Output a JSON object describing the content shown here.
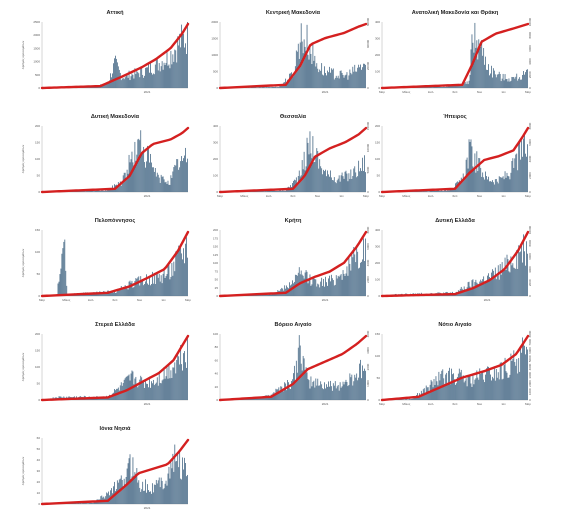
{
  "colors": {
    "bar": "#4d6e8a",
    "line": "#d42020",
    "axis": "#999999",
    "text": "#222222"
  },
  "chart_data": [
    {
      "type": "bar",
      "title": "Αττική",
      "ylabel": "Αριθμός κρουσμάτων",
      "ylim": [
        0,
        2500
      ],
      "yticks": [
        "2500",
        "2000",
        "1500",
        "1000",
        "500",
        "0"
      ],
      "rticks": [],
      "xticks": [
        "2021"
      ],
      "cumulative_label": "",
      "shape": [
        [
          0,
          0
        ],
        [
          0.35,
          0.02
        ],
        [
          0.45,
          0.08
        ],
        [
          0.5,
          0.45
        ],
        [
          0.55,
          0.2
        ],
        [
          0.62,
          0.25
        ],
        [
          0.7,
          0.3
        ],
        [
          0.8,
          0.45
        ],
        [
          0.88,
          0.6
        ],
        [
          0.95,
          0.85
        ],
        [
          1,
          0.95
        ]
      ],
      "cumulative": [
        [
          0,
          0
        ],
        [
          0.4,
          0.03
        ],
        [
          0.55,
          0.18
        ],
        [
          0.68,
          0.32
        ],
        [
          0.78,
          0.45
        ],
        [
          0.88,
          0.62
        ],
        [
          0.96,
          0.85
        ],
        [
          1,
          1
        ]
      ]
    },
    {
      "type": "bar",
      "title": "Κεντρική Μακεδονία",
      "ylabel": "",
      "ylim": [
        0,
        2000
      ],
      "yticks": [
        "2000",
        "1500",
        "1000",
        "500",
        "0"
      ],
      "rticks": [
        "60000",
        "40000",
        "20000",
        "0"
      ],
      "xticks": [
        "2021"
      ],
      "cumulative_label": "",
      "shape": [
        [
          0,
          0
        ],
        [
          0.4,
          0.02
        ],
        [
          0.5,
          0.25
        ],
        [
          0.55,
          0.95
        ],
        [
          0.6,
          0.85
        ],
        [
          0.66,
          0.45
        ],
        [
          0.72,
          0.3
        ],
        [
          0.8,
          0.25
        ],
        [
          0.86,
          0.22
        ],
        [
          0.92,
          0.3
        ],
        [
          1,
          0.45
        ]
      ],
      "cumulative": [
        [
          0,
          0
        ],
        [
          0.45,
          0.05
        ],
        [
          0.55,
          0.35
        ],
        [
          0.62,
          0.68
        ],
        [
          0.72,
          0.78
        ],
        [
          0.85,
          0.86
        ],
        [
          0.95,
          0.96
        ],
        [
          1,
          1
        ]
      ]
    },
    {
      "type": "bar",
      "title": "Ανατολική Μακεδονία και Θράκη",
      "ylabel": "",
      "ylim": [
        0,
        400
      ],
      "yticks": [
        "400",
        "300",
        "200",
        "100",
        "0"
      ],
      "rticks": [
        "10000",
        "8000",
        "6000",
        "4000",
        "2000",
        "0"
      ],
      "xticks": [
        "Μαρ",
        "Μάιος",
        "Ιούλ",
        "Σεπ",
        "Νοε",
        "Ιαν",
        "Μαρ"
      ],
      "cumulative_label": "",
      "shape": [
        [
          0,
          0
        ],
        [
          0.45,
          0.03
        ],
        [
          0.6,
          0.1
        ],
        [
          0.62,
          0.98
        ],
        [
          0.68,
          0.75
        ],
        [
          0.74,
          0.35
        ],
        [
          0.82,
          0.2
        ],
        [
          0.9,
          0.18
        ],
        [
          1,
          0.25
        ]
      ],
      "cumulative": [
        [
          0,
          0
        ],
        [
          0.55,
          0.05
        ],
        [
          0.62,
          0.38
        ],
        [
          0.68,
          0.72
        ],
        [
          0.78,
          0.85
        ],
        [
          0.9,
          0.93
        ],
        [
          1,
          1
        ]
      ]
    },
    {
      "type": "bar",
      "title": "Δυτική Μακεδονία",
      "ylabel": "Αριθμός κρουσμάτων",
      "ylim": [
        0,
        200
      ],
      "yticks": [
        "200",
        "150",
        "100",
        "50",
        "0"
      ],
      "rticks": [],
      "xticks": [
        "2021"
      ],
      "cumulative_label": "",
      "shape": [
        [
          0,
          0
        ],
        [
          0.45,
          0.03
        ],
        [
          0.55,
          0.2
        ],
        [
          0.62,
          0.65
        ],
        [
          0.68,
          0.9
        ],
        [
          0.74,
          0.55
        ],
        [
          0.8,
          0.25
        ],
        [
          0.88,
          0.2
        ],
        [
          0.94,
          0.55
        ],
        [
          1,
          0.6
        ]
      ],
      "cumulative": [
        [
          0,
          0
        ],
        [
          0.5,
          0.05
        ],
        [
          0.6,
          0.25
        ],
        [
          0.68,
          0.6
        ],
        [
          0.76,
          0.75
        ],
        [
          0.88,
          0.82
        ],
        [
          0.96,
          0.92
        ],
        [
          1,
          1
        ]
      ]
    },
    {
      "type": "bar",
      "title": "Θεσσαλία",
      "ylabel": "",
      "ylim": [
        0,
        400
      ],
      "yticks": [
        "400",
        "300",
        "200",
        "100",
        "0"
      ],
      "rticks": [
        "15000",
        "10000",
        "5000",
        "0"
      ],
      "xticks": [
        "Μαρ",
        "Μάιος",
        "Ιούλ",
        "Σεπ",
        "Νοε",
        "Ιαν",
        "Μαρ"
      ],
      "cumulative_label": "",
      "shape": [
        [
          0,
          0
        ],
        [
          0.45,
          0.03
        ],
        [
          0.55,
          0.3
        ],
        [
          0.62,
          0.95
        ],
        [
          0.68,
          0.55
        ],
        [
          0.74,
          0.3
        ],
        [
          0.82,
          0.25
        ],
        [
          0.9,
          0.32
        ],
        [
          0.96,
          0.45
        ],
        [
          1,
          0.55
        ]
      ],
      "cumulative": [
        [
          0,
          0
        ],
        [
          0.5,
          0.05
        ],
        [
          0.58,
          0.25
        ],
        [
          0.65,
          0.55
        ],
        [
          0.75,
          0.68
        ],
        [
          0.86,
          0.78
        ],
        [
          0.95,
          0.9
        ],
        [
          1,
          1
        ]
      ]
    },
    {
      "type": "bar",
      "title": "Ήπειρος",
      "ylabel": "",
      "ylim": [
        0,
        200
      ],
      "yticks": [
        "200",
        "150",
        "100",
        "50",
        "0"
      ],
      "rticks": [
        "8000",
        "6000",
        "4000",
        "2000",
        "0"
      ],
      "xticks": [
        "Μαρ",
        "Μάιος",
        "Ιούλ",
        "Σεπ",
        "Νοε",
        "Ιαν",
        "Μαρ"
      ],
      "cumulative_label": "",
      "shape": [
        [
          0,
          0
        ],
        [
          0.45,
          0.03
        ],
        [
          0.55,
          0.2
        ],
        [
          0.6,
          0.75
        ],
        [
          0.66,
          0.5
        ],
        [
          0.72,
          0.25
        ],
        [
          0.8,
          0.2
        ],
        [
          0.88,
          0.35
        ],
        [
          0.95,
          0.7
        ],
        [
          1,
          0.8
        ]
      ],
      "cumulative": [
        [
          0,
          0
        ],
        [
          0.5,
          0.05
        ],
        [
          0.6,
          0.3
        ],
        [
          0.7,
          0.5
        ],
        [
          0.8,
          0.56
        ],
        [
          0.9,
          0.65
        ],
        [
          0.96,
          0.85
        ],
        [
          1,
          1
        ]
      ]
    },
    {
      "type": "bar",
      "title": "Πελοπόννησος",
      "ylabel": "Αριθμός κρουσμάτων",
      "ylim": [
        0,
        150
      ],
      "yticks": [
        "150",
        "100",
        "50",
        "0"
      ],
      "rticks": [],
      "xticks": [
        "Μαρ",
        "Μάιος",
        "Ιούλ",
        "Σεπ",
        "Νοε",
        "Ιαν",
        "Μαρ"
      ],
      "cumulative_label": "",
      "shape": [
        [
          0,
          0
        ],
        [
          0.1,
          0.02
        ],
        [
          0.15,
          1.0
        ],
        [
          0.17,
          0.03
        ],
        [
          0.5,
          0.08
        ],
        [
          0.6,
          0.2
        ],
        [
          0.7,
          0.3
        ],
        [
          0.8,
          0.35
        ],
        [
          0.88,
          0.45
        ],
        [
          0.95,
          0.75
        ],
        [
          1,
          0.95
        ]
      ],
      "cumulative": [
        [
          0,
          0
        ],
        [
          0.45,
          0.05
        ],
        [
          0.6,
          0.15
        ],
        [
          0.72,
          0.28
        ],
        [
          0.84,
          0.42
        ],
        [
          0.93,
          0.7
        ],
        [
          1,
          1
        ]
      ]
    },
    {
      "type": "bar",
      "title": "Κρήτη",
      "ylabel": "",
      "ylim": [
        0,
        200
      ],
      "yticks": [
        "200",
        "175",
        "150",
        "125",
        "100",
        "75",
        "50",
        "25",
        "0"
      ],
      "rticks": [
        "8000",
        "6000",
        "4000",
        "2000",
        "0"
      ],
      "xticks": [
        "2021"
      ],
      "cumulative_label": "",
      "shape": [
        [
          0,
          0
        ],
        [
          0.35,
          0.03
        ],
        [
          0.45,
          0.15
        ],
        [
          0.55,
          0.4
        ],
        [
          0.62,
          0.3
        ],
        [
          0.7,
          0.25
        ],
        [
          0.78,
          0.3
        ],
        [
          0.85,
          0.45
        ],
        [
          0.92,
          0.65
        ],
        [
          1,
          0.9
        ]
      ],
      "cumulative": [
        [
          0,
          0
        ],
        [
          0.45,
          0.05
        ],
        [
          0.55,
          0.2
        ],
        [
          0.65,
          0.3
        ],
        [
          0.75,
          0.38
        ],
        [
          0.85,
          0.52
        ],
        [
          0.94,
          0.78
        ],
        [
          1,
          1
        ]
      ]
    },
    {
      "type": "bar",
      "title": "Δυτική Ελλάδα",
      "ylabel": "",
      "ylim": [
        0,
        400
      ],
      "yticks": [
        "400",
        "300",
        "200",
        "100",
        "0"
      ],
      "rticks": [
        "10000",
        "8000",
        "6000",
        "4000",
        "2000",
        "0"
      ],
      "xticks": [
        "2021"
      ],
      "cumulative_label": "",
      "shape": [
        [
          0,
          0
        ],
        [
          0.1,
          0.03
        ],
        [
          0.5,
          0.06
        ],
        [
          0.6,
          0.2
        ],
        [
          0.7,
          0.3
        ],
        [
          0.78,
          0.4
        ],
        [
          0.86,
          0.55
        ],
        [
          0.92,
          0.75
        ],
        [
          1,
          0.95
        ]
      ],
      "cumulative": [
        [
          0,
          0
        ],
        [
          0.5,
          0.03
        ],
        [
          0.62,
          0.12
        ],
        [
          0.74,
          0.25
        ],
        [
          0.84,
          0.42
        ],
        [
          0.93,
          0.7
        ],
        [
          1,
          1
        ]
      ]
    },
    {
      "type": "bar",
      "title": "Στερεά Ελλάδα",
      "ylabel": "Αριθμός κρουσμάτων",
      "ylim": [
        0,
        200
      ],
      "yticks": [
        "200",
        "150",
        "100",
        "50",
        "0"
      ],
      "rticks": [],
      "xticks": [
        "2021"
      ],
      "cumulative_label": "",
      "shape": [
        [
          0,
          0
        ],
        [
          0.1,
          0.05
        ],
        [
          0.45,
          0.06
        ],
        [
          0.55,
          0.25
        ],
        [
          0.62,
          0.4
        ],
        [
          0.7,
          0.3
        ],
        [
          0.78,
          0.35
        ],
        [
          0.86,
          0.5
        ],
        [
          0.93,
          0.7
        ],
        [
          1,
          0.95
        ]
      ],
      "cumulative": [
        [
          0,
          0
        ],
        [
          0.45,
          0.04
        ],
        [
          0.58,
          0.15
        ],
        [
          0.7,
          0.3
        ],
        [
          0.8,
          0.42
        ],
        [
          0.9,
          0.62
        ],
        [
          1,
          1
        ]
      ]
    },
    {
      "type": "bar",
      "title": "Βόρειο Αιγαίο",
      "ylabel": "",
      "ylim": [
        0,
        100
      ],
      "yticks": [
        "100",
        "80",
        "60",
        "40",
        "20",
        "0"
      ],
      "rticks": [
        "4000",
        "3000",
        "2000",
        "1000",
        "0"
      ],
      "xticks": [
        "2021"
      ],
      "cumulative_label": "",
      "shape": [
        [
          0,
          0
        ],
        [
          0.3,
          0.05
        ],
        [
          0.4,
          0.2
        ],
        [
          0.5,
          0.35
        ],
        [
          0.55,
          0.95
        ],
        [
          0.6,
          0.35
        ],
        [
          0.7,
          0.3
        ],
        [
          0.8,
          0.25
        ],
        [
          0.88,
          0.35
        ],
        [
          0.95,
          0.5
        ],
        [
          1,
          0.6
        ]
      ],
      "cumulative": [
        [
          0,
          0
        ],
        [
          0.35,
          0.05
        ],
        [
          0.5,
          0.25
        ],
        [
          0.6,
          0.48
        ],
        [
          0.72,
          0.6
        ],
        [
          0.84,
          0.72
        ],
        [
          0.94,
          0.88
        ],
        [
          1,
          1
        ]
      ]
    },
    {
      "type": "bar",
      "title": "Νότιο Αιγαίο",
      "ylabel": "",
      "ylim": [
        0,
        150
      ],
      "yticks": [
        "150",
        "100",
        "50",
        "0"
      ],
      "rticks": [
        "8000",
        "7000",
        "6000",
        "5000",
        "4000",
        "3000",
        "2000",
        "1000",
        "0"
      ],
      "xticks": [
        "Μαρ",
        "Μάιος",
        "Ιούλ",
        "Σεπ",
        "Νοε",
        "Ιαν",
        "Μαρ"
      ],
      "cumulative_label": "",
      "shape": [
        [
          0,
          0
        ],
        [
          0.2,
          0.02
        ],
        [
          0.3,
          0.2
        ],
        [
          0.4,
          0.4
        ],
        [
          0.5,
          0.45
        ],
        [
          0.6,
          0.35
        ],
        [
          0.7,
          0.45
        ],
        [
          0.8,
          0.5
        ],
        [
          0.9,
          0.65
        ],
        [
          0.96,
          0.9
        ],
        [
          1,
          0.7
        ]
      ],
      "cumulative": [
        [
          0,
          0
        ],
        [
          0.25,
          0.05
        ],
        [
          0.4,
          0.2
        ],
        [
          0.55,
          0.35
        ],
        [
          0.7,
          0.45
        ],
        [
          0.82,
          0.55
        ],
        [
          0.92,
          0.72
        ],
        [
          1,
          1
        ]
      ]
    },
    {
      "type": "bar",
      "title": "Ιόνια Νησιά",
      "ylabel": "Αριθμός κρουσμάτων",
      "ylim": [
        0,
        60
      ],
      "yticks": [
        "60",
        "50",
        "40",
        "30",
        "20",
        "10",
        "0"
      ],
      "rticks": [],
      "xticks": [
        "2021"
      ],
      "cumulative_label": "",
      "shape": [
        [
          0,
          0
        ],
        [
          0.35,
          0.02
        ],
        [
          0.45,
          0.2
        ],
        [
          0.55,
          0.4
        ],
        [
          0.62,
          0.75
        ],
        [
          0.68,
          0.35
        ],
        [
          0.76,
          0.3
        ],
        [
          0.85,
          0.45
        ],
        [
          0.92,
          0.85
        ],
        [
          1,
          0.55
        ]
      ],
      "cumulative": [
        [
          0,
          0
        ],
        [
          0.45,
          0.05
        ],
        [
          0.58,
          0.3
        ],
        [
          0.66,
          0.48
        ],
        [
          0.76,
          0.55
        ],
        [
          0.86,
          0.62
        ],
        [
          0.94,
          0.82
        ],
        [
          1,
          1
        ]
      ]
    }
  ]
}
